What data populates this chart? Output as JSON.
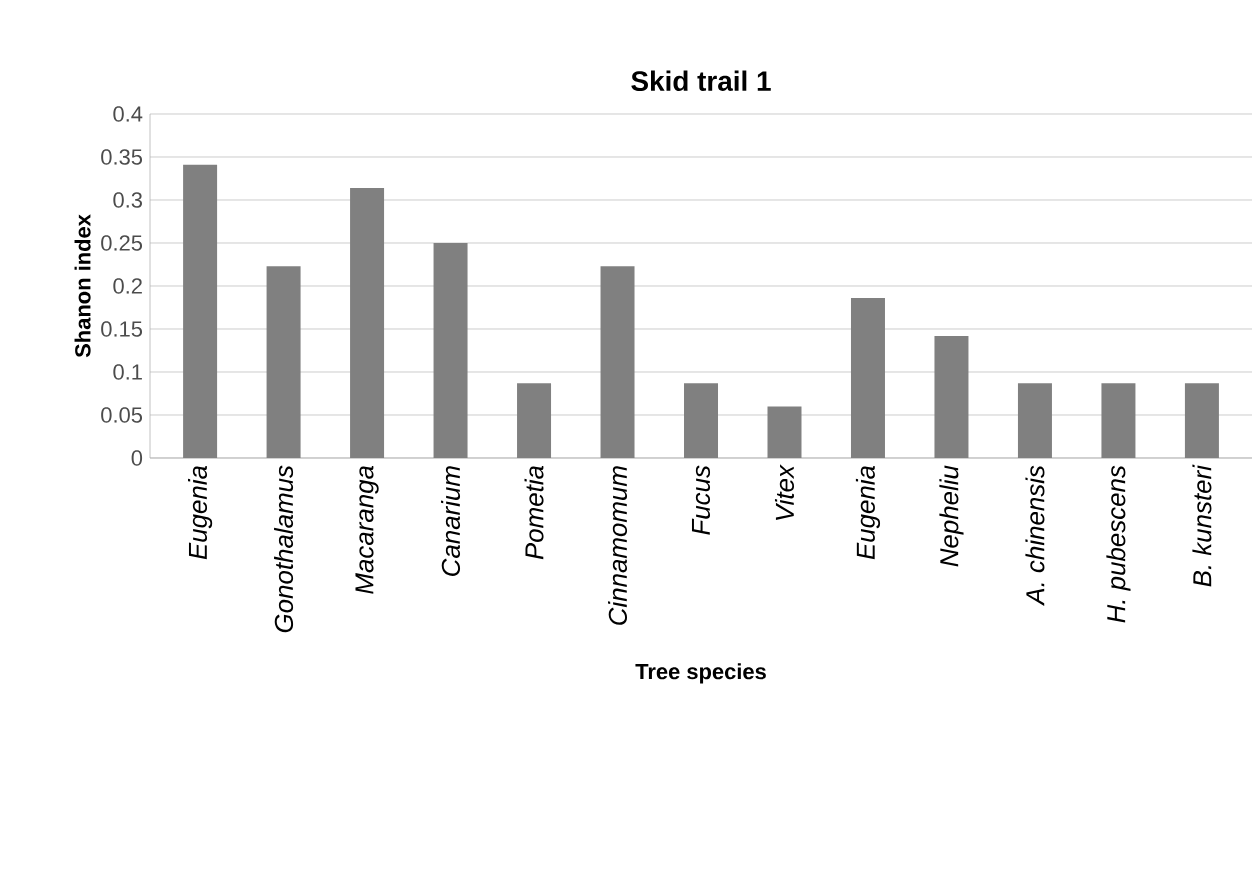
{
  "chart_data": {
    "type": "bar",
    "title": "Skid trail 1",
    "xlabel": "Tree species",
    "ylabel": "Shanon index",
    "categories": [
      "Eugenia",
      "Gonothalamus",
      "Macaranga",
      "Canarium",
      "Pometia",
      "Cinnamomum",
      "Fucus",
      "Vitex",
      "Eugenia",
      "Nepheliu",
      "A. chinensis",
      "H. pubescens",
      "B. kunsteri"
    ],
    "values": [
      0.341,
      0.223,
      0.314,
      0.25,
      0.087,
      0.223,
      0.087,
      0.06,
      0.186,
      0.142,
      0.087,
      0.087,
      0.087
    ],
    "color": "#808080",
    "ylim": [
      0,
      0.4
    ],
    "yticks": [
      0,
      0.05,
      0.1,
      0.15,
      0.2,
      0.25,
      0.3,
      0.35,
      0.4
    ],
    "grid": "y"
  }
}
